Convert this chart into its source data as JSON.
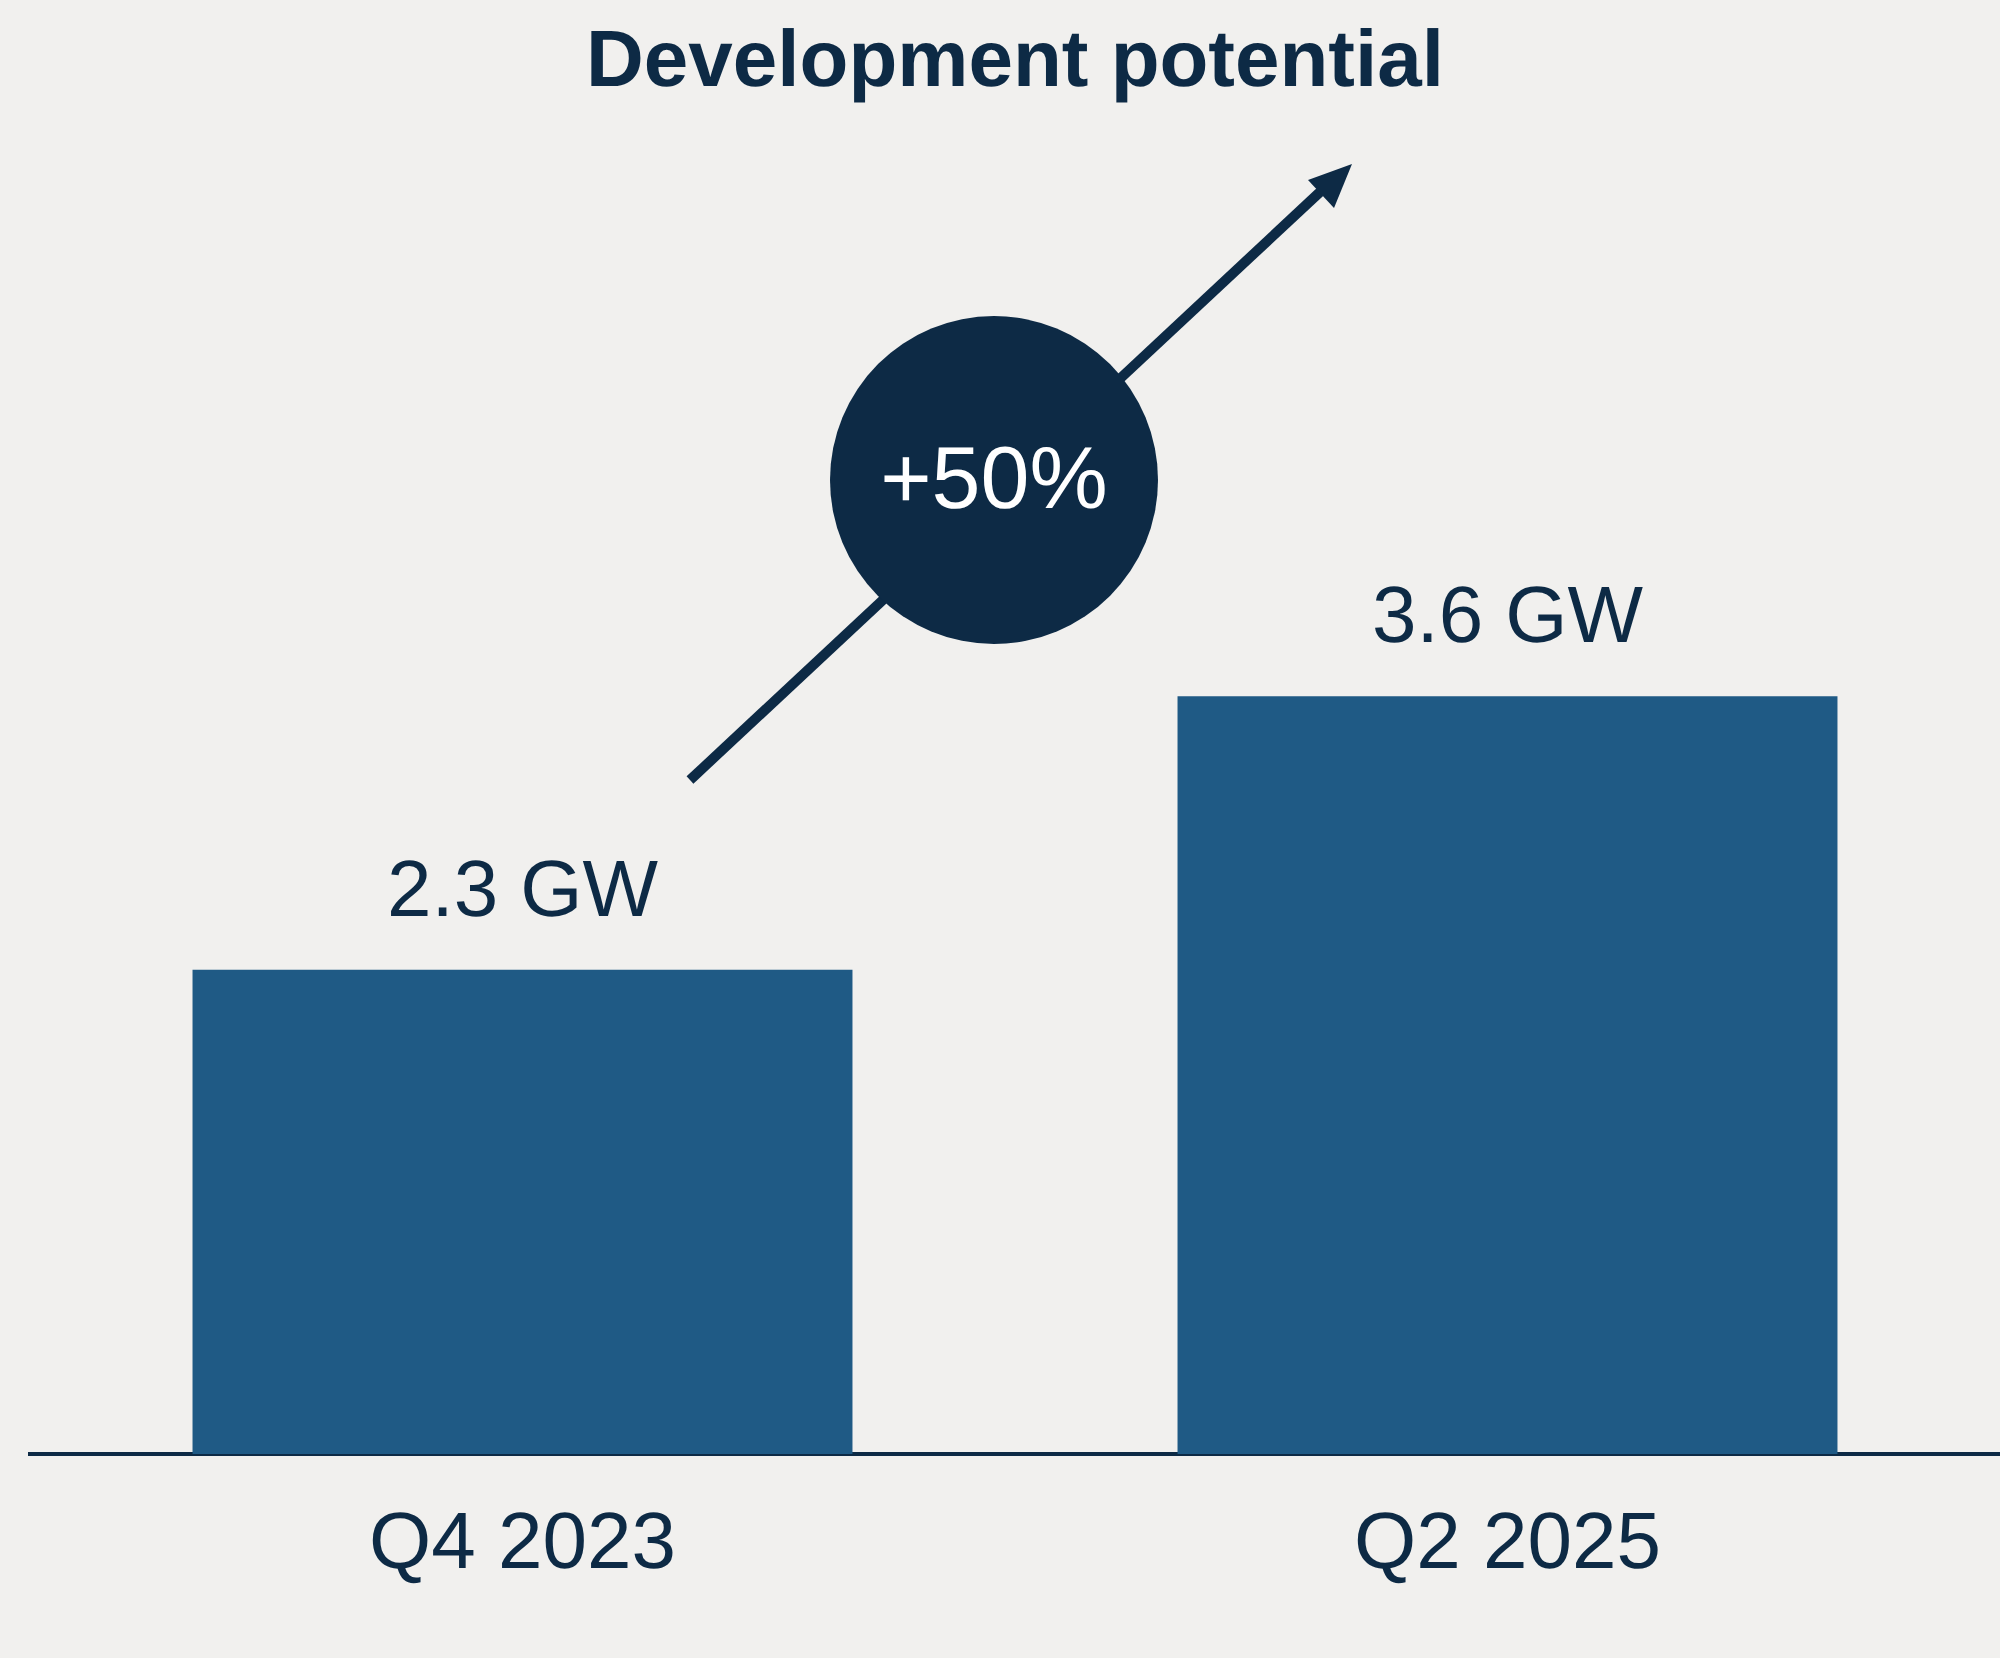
{
  "chart_data": {
    "type": "bar",
    "title": "Development potential",
    "categories": [
      "Q4 2023",
      "Q2 2025"
    ],
    "values": [
      2.3,
      3.6
    ],
    "value_labels": [
      "2.3 GW",
      "3.6 GW"
    ],
    "color": "#1f5a85",
    "annotations": [
      "+50%"
    ],
    "grid": false,
    "legend": false
  }
}
